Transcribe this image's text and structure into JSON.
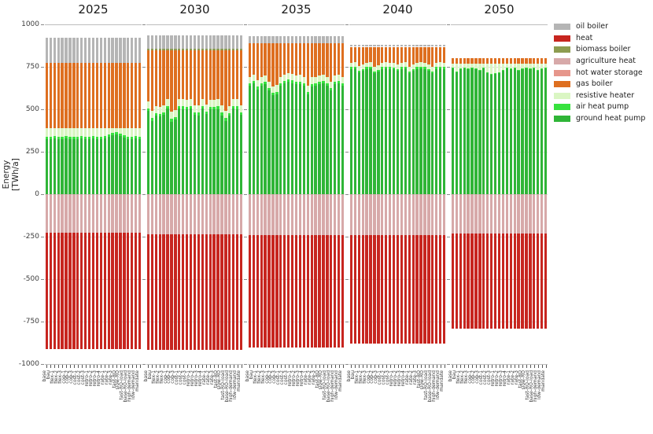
{
  "figure": {
    "background": "#ffffff"
  },
  "y_axis": {
    "label": "Energy [TWh/a]",
    "min": -1000,
    "max": 1000,
    "ticks": [
      {
        "label": "-1000",
        "value": -1000
      },
      {
        "label": "-750",
        "value": -750
      },
      {
        "label": "-500",
        "value": -500
      },
      {
        "label": "-250",
        "value": -250
      },
      {
        "label": "0",
        "value": 0
      },
      {
        "label": "250",
        "value": 250
      },
      {
        "label": "500",
        "value": 500
      },
      {
        "label": "750",
        "value": 750
      },
      {
        "label": "1000",
        "value": 1000
      }
    ]
  },
  "chart_data": {
    "type": "bar",
    "stacked": true,
    "unit": "TWh/a",
    "ylabel": "Energy [TWh/a]",
    "ylim": [
      -1000,
      1000
    ],
    "grid": true,
    "legend_position": "top-right",
    "legend": [
      {
        "label": "oil boiler",
        "color": "#b5b5b5"
      },
      {
        "label": "heat",
        "color": "#c7251f"
      },
      {
        "label": "biomass boiler",
        "color": "#8d9c50"
      },
      {
        "label": "agriculture heat",
        "color": "#d7a9a9"
      },
      {
        "label": "hot water storage",
        "color": "#e6968b"
      },
      {
        "label": "gas boiler",
        "color": "#de6f20"
      },
      {
        "label": "resistive heater",
        "color": "#daf6c3"
      },
      {
        "label": "air heat pump",
        "color": "#37e23e"
      },
      {
        "label": "ground heat pump",
        "color": "#2fb537"
      }
    ],
    "stack_order_positive": [
      "ground heat pump",
      "air heat pump",
      "resistive heater",
      "gas boiler",
      "biomass boiler",
      "oil boiler"
    ],
    "stack_order_negative": [
      "agriculture heat",
      "heat"
    ],
    "categories": [
      "base",
      "bau",
      "flex-1",
      "flex-2",
      "flex-3",
      "cop-1",
      "cop-2",
      "cop-3",
      "cost-1",
      "cost-2",
      "cost-3",
      "retro-1",
      "retro-2",
      "retro-3",
      "retro-4",
      "rate-1",
      "rate-2",
      "rate-3",
      "fast-RO",
      "slow-RO",
      "fast-RO-load",
      "base-RO-load",
      "high-demand",
      "low-demand",
      "mandate"
    ],
    "panels": [
      {
        "title": "2025",
        "series": {
          "ground heat pump": [
            326,
            324,
            327,
            325,
            326,
            328,
            325,
            326,
            324,
            327,
            325,
            326,
            328,
            325,
            326,
            327,
            338,
            348,
            352,
            344,
            332,
            326,
            325,
            327,
            326
          ],
          "air heat pump": 14,
          "resistive heater": [
            48,
            50,
            47,
            49,
            48,
            46,
            49,
            48,
            50,
            47,
            49,
            48,
            46,
            49,
            48,
            47,
            36,
            26,
            22,
            30,
            42,
            48,
            49,
            47,
            48
          ],
          "gas boiler": 384,
          "biomass boiler": 0,
          "oil boiler": 148,
          "agriculture heat": 228,
          "heat": 682
        }
      },
      {
        "title": "2030",
        "series": {
          "ground heat pump": [
            490,
            432,
            462,
            458,
            468,
            505,
            428,
            438,
            505,
            502,
            500,
            504,
            468,
            465,
            505,
            470,
            500,
            498,
            502,
            465,
            432,
            462,
            505,
            502,
            468
          ],
          "air heat pump": 15,
          "resistive heater": 42,
          "gas boiler": [
            298,
            356,
            326,
            330,
            320,
            283,
            360,
            350,
            283,
            286,
            288,
            284,
            320,
            323,
            283,
            318,
            288,
            290,
            286,
            323,
            356,
            326,
            283,
            286,
            320
          ],
          "biomass boiler": 10,
          "oil boiler": 78,
          "agriculture heat": 238,
          "heat": 680
        }
      },
      {
        "title": "2035",
        "series": {
          "ground heat pump": [
            640,
            652,
            618,
            640,
            648,
            612,
            582,
            590,
            640,
            652,
            660,
            655,
            648,
            650,
            640,
            588,
            636,
            640,
            648,
            652,
            640,
            610,
            648,
            652,
            640
          ],
          "air heat pump": 14,
          "resistive heater": 38,
          "gas boiler": [
            198,
            186,
            220,
            198,
            190,
            226,
            256,
            248,
            198,
            186,
            178,
            183,
            190,
            188,
            198,
            250,
            202,
            198,
            190,
            186,
            198,
            228,
            190,
            186,
            198
          ],
          "biomass boiler": 0,
          "oil boiler": 40,
          "agriculture heat": 240,
          "heat": 665
        }
      },
      {
        "title": "2040",
        "series": {
          "ground heat pump": [
            738,
            742,
            718,
            726,
            738,
            742,
            712,
            722,
            738,
            742,
            738,
            735,
            726,
            738,
            742,
            712,
            726,
            738,
            742,
            738,
            726,
            712,
            738,
            742,
            738
          ],
          "air heat pump": 10,
          "resistive heater": 26,
          "gas boiler": [
            94,
            90,
            114,
            106,
            94,
            90,
            120,
            110,
            94,
            90,
            94,
            97,
            106,
            94,
            90,
            120,
            106,
            94,
            90,
            94,
            106,
            120,
            94,
            90,
            94
          ],
          "biomass boiler": 0,
          "oil boiler": 12,
          "agriculture heat": 240,
          "heat": 640
        }
      },
      {
        "title": "2050",
        "series": {
          "ground heat pump": [
            742,
            716,
            738,
            742,
            738,
            742,
            738,
            726,
            742,
            712,
            705,
            710,
            715,
            726,
            742,
            738,
            742,
            726,
            738,
            742,
            738,
            742,
            726,
            738,
            742
          ],
          "air heat pump": 4,
          "resistive heater": [
            24,
            50,
            28,
            24,
            28,
            24,
            28,
            40,
            24,
            54,
            61,
            56,
            51,
            40,
            24,
            28,
            24,
            40,
            28,
            24,
            28,
            24,
            40,
            28,
            24
          ],
          "gas boiler": 32,
          "biomass boiler": 0,
          "oil boiler": 0,
          "agriculture heat": 230,
          "heat": 562
        }
      }
    ]
  }
}
